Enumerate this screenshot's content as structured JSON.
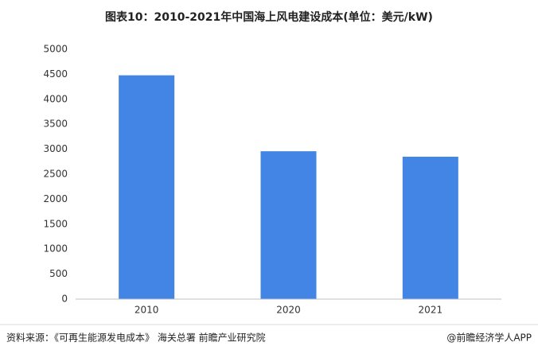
{
  "chart_data": {
    "type": "bar",
    "title": "图表10：2010-2021年中国海上风电建设成本(单位：美元/kW)",
    "categories": [
      "2010",
      "2020",
      "2021"
    ],
    "values": [
      4480,
      2960,
      2850
    ],
    "color": "#4285e4",
    "ylim": [
      0,
      5000
    ],
    "yticks": [
      0,
      500,
      1000,
      1500,
      2000,
      2500,
      3000,
      3500,
      4000,
      4500,
      5000
    ],
    "grid": false,
    "source": "资料来源：《可再生能源发电成本》 海关总署 前瞻产业研究院",
    "credit": "@前瞻经济学人APP"
  }
}
